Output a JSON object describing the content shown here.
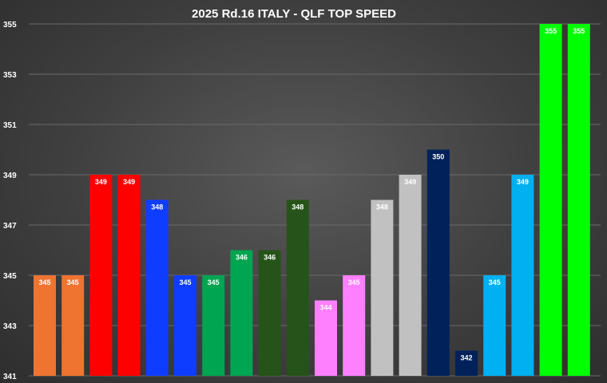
{
  "chart_data": {
    "type": "bar",
    "title": "2025 Rd.16 ITALY - QLF TOP SPEED",
    "xlabel": "",
    "ylabel": "",
    "ylim": [
      341,
      355
    ],
    "yticks": [
      "341",
      "343",
      "345",
      "347",
      "349",
      "351",
      "353",
      "355"
    ],
    "grid": true,
    "values": [
      345,
      345,
      349,
      349,
      348,
      345,
      345,
      346,
      346,
      348,
      344,
      345,
      348,
      349,
      350,
      342,
      345,
      349,
      355,
      355
    ],
    "colors": [
      "#ee7430",
      "#ee7430",
      "#ff0000",
      "#ff0000",
      "#0f3dff",
      "#0f3dff",
      "#00a551",
      "#00a551",
      "#265319",
      "#265319",
      "#ff80ff",
      "#ff80ff",
      "#c1c1c1",
      "#c1c1c1",
      "#00215a",
      "#00215a",
      "#00b0f0",
      "#00b0f0",
      "#00ff00",
      "#00ff00"
    ]
  }
}
